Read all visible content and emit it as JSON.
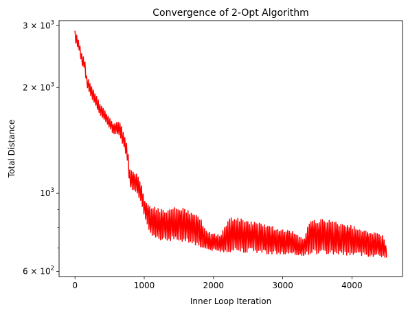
{
  "chart_data": {
    "type": "line",
    "title": "Convergence of 2-Opt Algorithm",
    "xlabel": "Inner Loop Iteration",
    "ylabel": "Total Distance",
    "yscale": "log",
    "xlim": [
      -230,
      4730
    ],
    "ylim": [
      580,
      3100
    ],
    "grid": false,
    "x_ticks": [
      {
        "value": 0,
        "label": "0"
      },
      {
        "value": 1000,
        "label": "1000"
      },
      {
        "value": 2000,
        "label": "2000"
      },
      {
        "value": 3000,
        "label": "3000"
      },
      {
        "value": 4000,
        "label": "4000"
      }
    ],
    "y_ticks": [
      {
        "value": 600,
        "mantissa": "6",
        "base": "10",
        "exponent": "2"
      },
      {
        "value": 1000,
        "mantissa": "",
        "base": "10",
        "exponent": "3"
      },
      {
        "value": 2000,
        "mantissa": "2",
        "base": "10",
        "exponent": "3"
      },
      {
        "value": 3000,
        "mantissa": "3",
        "base": "10",
        "exponent": "3"
      }
    ],
    "y_minor_ticks": [
      700,
      800,
      900
    ],
    "series": [
      {
        "color": "#ff0000",
        "envelope": [
          {
            "x": 0,
            "low": 2700,
            "high": 2920
          },
          {
            "x": 60,
            "low": 2550,
            "high": 2700
          },
          {
            "x": 100,
            "low": 2300,
            "high": 2500
          },
          {
            "x": 140,
            "low": 2250,
            "high": 2400
          },
          {
            "x": 170,
            "low": 2000,
            "high": 2150
          },
          {
            "x": 250,
            "low": 1850,
            "high": 2000
          },
          {
            "x": 350,
            "low": 1680,
            "high": 1820
          },
          {
            "x": 450,
            "low": 1580,
            "high": 1700
          },
          {
            "x": 550,
            "low": 1480,
            "high": 1580
          },
          {
            "x": 650,
            "low": 1450,
            "high": 1600
          },
          {
            "x": 720,
            "low": 1320,
            "high": 1450
          },
          {
            "x": 760,
            "low": 1230,
            "high": 1350
          },
          {
            "x": 790,
            "low": 1040,
            "high": 1180
          },
          {
            "x": 900,
            "low": 1000,
            "high": 1130
          },
          {
            "x": 970,
            "low": 920,
            "high": 1050
          },
          {
            "x": 1000,
            "low": 850,
            "high": 960
          },
          {
            "x": 1100,
            "low": 740,
            "high": 920
          },
          {
            "x": 1300,
            "low": 735,
            "high": 900
          },
          {
            "x": 1500,
            "low": 730,
            "high": 920
          },
          {
            "x": 1700,
            "low": 720,
            "high": 890
          },
          {
            "x": 1800,
            "low": 700,
            "high": 860
          },
          {
            "x": 1900,
            "low": 690,
            "high": 780
          },
          {
            "x": 2100,
            "low": 680,
            "high": 760
          },
          {
            "x": 2250,
            "low": 680,
            "high": 860
          },
          {
            "x": 2500,
            "low": 680,
            "high": 840
          },
          {
            "x": 2700,
            "low": 675,
            "high": 820
          },
          {
            "x": 2900,
            "low": 670,
            "high": 800
          },
          {
            "x": 3100,
            "low": 665,
            "high": 790
          },
          {
            "x": 3300,
            "low": 665,
            "high": 740
          },
          {
            "x": 3400,
            "low": 670,
            "high": 850
          },
          {
            "x": 3700,
            "low": 670,
            "high": 840
          },
          {
            "x": 3900,
            "low": 665,
            "high": 820
          },
          {
            "x": 4100,
            "low": 665,
            "high": 800
          },
          {
            "x": 4300,
            "low": 660,
            "high": 780
          },
          {
            "x": 4450,
            "low": 660,
            "high": 760
          },
          {
            "x": 4500,
            "low": 650,
            "high": 700
          }
        ]
      }
    ]
  }
}
